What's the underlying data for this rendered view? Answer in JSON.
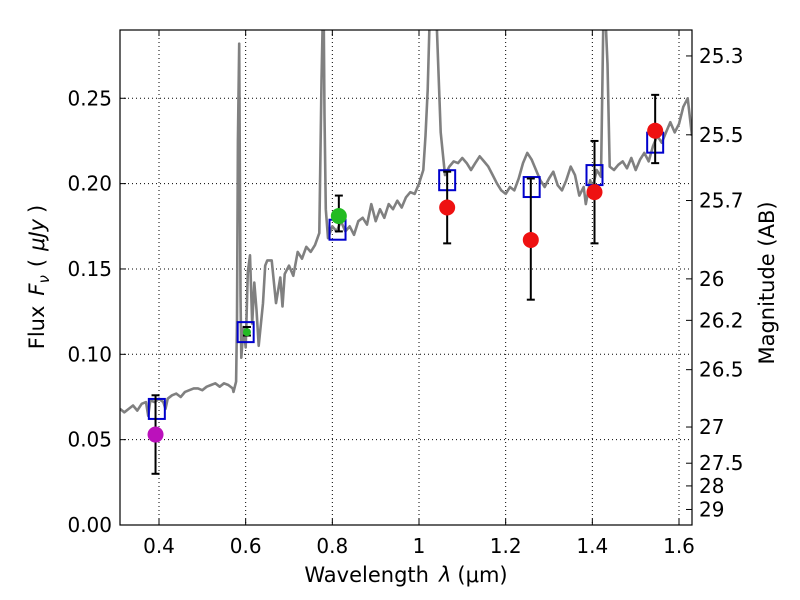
{
  "chart_data": {
    "type": "scatter",
    "xlabel_text": "Wavelength",
    "xlabel_symbol": "λ",
    "xlabel_unit": "(μm)",
    "ylabel_text": "Flux",
    "ylabel_symbol": "F",
    "ylabel_symbol_sub": "ν",
    "ylabel_unit_open": "(",
    "ylabel_unit": "μJy",
    "ylabel_unit_close": ")",
    "y2label": "Magnitude (AB)",
    "xlim": [
      0.31,
      1.63
    ],
    "ylim": [
      0.0,
      0.29
    ],
    "xticks": [
      0.4,
      0.6,
      0.8,
      1.0,
      1.2,
      1.4,
      1.6
    ],
    "xtick_labels": [
      "0.4",
      "0.6",
      "0.8",
      "1",
      "1.2",
      "1.4",
      "1.6"
    ],
    "yticks": [
      0.0,
      0.05,
      0.1,
      0.15,
      0.2,
      0.25
    ],
    "ytick_labels": [
      "0.00",
      "0.05",
      "0.10",
      "0.15",
      "0.20",
      "0.25"
    ],
    "mag_ticks": [
      {
        "label": "25.3",
        "flux": 0.2748
      },
      {
        "label": "25.5",
        "flux": 0.2286
      },
      {
        "label": "25.7",
        "flux": 0.1901
      },
      {
        "label": "26",
        "flux": 0.1442
      },
      {
        "label": "26.2",
        "flux": 0.1199
      },
      {
        "label": "26.5",
        "flux": 0.091
      },
      {
        "label": "27",
        "flux": 0.0574
      },
      {
        "label": "27.5",
        "flux": 0.0362
      },
      {
        "label": "28",
        "flux": 0.0229
      },
      {
        "label": "29",
        "flux": 0.0091
      }
    ],
    "grid": true,
    "colors": {
      "model": "#808080",
      "template": "#0000cc",
      "red": "#ee1111",
      "green": "#22bb22",
      "magenta": "#bb11bb",
      "errorbar": "#000000"
    },
    "series": [
      {
        "name": "model-spectrum",
        "kind": "line",
        "x": [
          0.31,
          0.32,
          0.33,
          0.34,
          0.35,
          0.36,
          0.37,
          0.375,
          0.38,
          0.39,
          0.4,
          0.41,
          0.415,
          0.42,
          0.43,
          0.44,
          0.45,
          0.46,
          0.47,
          0.48,
          0.49,
          0.5,
          0.51,
          0.52,
          0.53,
          0.54,
          0.55,
          0.56,
          0.57,
          0.572,
          0.578,
          0.58,
          0.582,
          0.585,
          0.588,
          0.59,
          0.595,
          0.6,
          0.605,
          0.61,
          0.615,
          0.62,
          0.625,
          0.63,
          0.64,
          0.645,
          0.65,
          0.66,
          0.67,
          0.68,
          0.685,
          0.69,
          0.7,
          0.71,
          0.72,
          0.73,
          0.74,
          0.75,
          0.76,
          0.77,
          0.775,
          0.778,
          0.78,
          0.782,
          0.785,
          0.79,
          0.8,
          0.81,
          0.82,
          0.83,
          0.84,
          0.85,
          0.86,
          0.87,
          0.88,
          0.89,
          0.9,
          0.91,
          0.92,
          0.93,
          0.94,
          0.95,
          0.96,
          0.97,
          0.98,
          0.99,
          1.0,
          1.01,
          1.015,
          1.02,
          1.025,
          1.03,
          1.035,
          1.04,
          1.05,
          1.06,
          1.07,
          1.08,
          1.09,
          1.1,
          1.11,
          1.12,
          1.13,
          1.14,
          1.15,
          1.16,
          1.17,
          1.18,
          1.19,
          1.2,
          1.21,
          1.22,
          1.23,
          1.24,
          1.25,
          1.26,
          1.27,
          1.28,
          1.29,
          1.3,
          1.31,
          1.32,
          1.33,
          1.34,
          1.35,
          1.36,
          1.37,
          1.38,
          1.385,
          1.39,
          1.395,
          1.4,
          1.41,
          1.42,
          1.425,
          1.43,
          1.435,
          1.44,
          1.45,
          1.46,
          1.47,
          1.48,
          1.49,
          1.5,
          1.51,
          1.52,
          1.53,
          1.54,
          1.55,
          1.56,
          1.57,
          1.58,
          1.59,
          1.6,
          1.61,
          1.62,
          1.63
        ],
        "y": [
          0.068,
          0.066,
          0.068,
          0.07,
          0.067,
          0.071,
          0.072,
          0.064,
          0.073,
          0.072,
          0.074,
          0.072,
          0.068,
          0.074,
          0.076,
          0.077,
          0.075,
          0.078,
          0.079,
          0.08,
          0.08,
          0.079,
          0.081,
          0.082,
          0.083,
          0.081,
          0.083,
          0.082,
          0.08,
          0.078,
          0.084,
          0.12,
          0.225,
          0.282,
          0.135,
          0.098,
          0.116,
          0.104,
          0.148,
          0.158,
          0.118,
          0.142,
          0.126,
          0.105,
          0.13,
          0.152,
          0.155,
          0.155,
          0.13,
          0.145,
          0.128,
          0.147,
          0.152,
          0.146,
          0.16,
          0.156,
          0.163,
          0.16,
          0.164,
          0.171,
          0.26,
          0.298,
          0.3,
          0.24,
          0.185,
          0.168,
          0.175,
          0.172,
          0.178,
          0.172,
          0.175,
          0.17,
          0.178,
          0.18,
          0.176,
          0.188,
          0.178,
          0.185,
          0.18,
          0.188,
          0.185,
          0.19,
          0.186,
          0.192,
          0.195,
          0.194,
          0.2,
          0.208,
          0.228,
          0.255,
          0.3,
          0.3,
          0.3,
          0.3,
          0.23,
          0.205,
          0.21,
          0.213,
          0.212,
          0.215,
          0.212,
          0.208,
          0.212,
          0.216,
          0.213,
          0.21,
          0.205,
          0.2,
          0.196,
          0.194,
          0.198,
          0.196,
          0.203,
          0.212,
          0.218,
          0.214,
          0.208,
          0.202,
          0.198,
          0.203,
          0.207,
          0.199,
          0.196,
          0.202,
          0.21,
          0.205,
          0.193,
          0.198,
          0.188,
          0.195,
          0.202,
          0.197,
          0.208,
          0.204,
          0.29,
          0.3,
          0.27,
          0.21,
          0.208,
          0.211,
          0.213,
          0.209,
          0.215,
          0.208,
          0.214,
          0.218,
          0.213,
          0.222,
          0.228,
          0.224,
          0.23,
          0.236,
          0.23,
          0.235,
          0.245,
          0.25,
          0.228
        ]
      },
      {
        "name": "template-photometry",
        "kind": "square",
        "x": [
          0.395,
          0.6,
          0.812,
          1.065,
          1.26,
          1.405,
          1.545
        ],
        "y": [
          0.068,
          0.113,
          0.173,
          0.202,
          0.198,
          0.205,
          0.224
        ]
      },
      {
        "name": "observed-photometry",
        "kind": "point",
        "x": [
          0.392,
          0.603,
          0.815,
          1.065,
          1.258,
          1.405,
          1.545
        ],
        "y": [
          0.053,
          0.113,
          0.181,
          0.186,
          0.167,
          0.195,
          0.231
        ],
        "color_keys": [
          "magenta",
          "green",
          "green",
          "red",
          "red",
          "red",
          "red"
        ],
        "err_low": [
          0.03,
          0.111,
          0.172,
          0.165,
          0.132,
          0.165,
          0.212
        ],
        "err_high": [
          0.076,
          0.116,
          0.193,
          0.207,
          0.203,
          0.225,
          0.252
        ]
      }
    ]
  }
}
